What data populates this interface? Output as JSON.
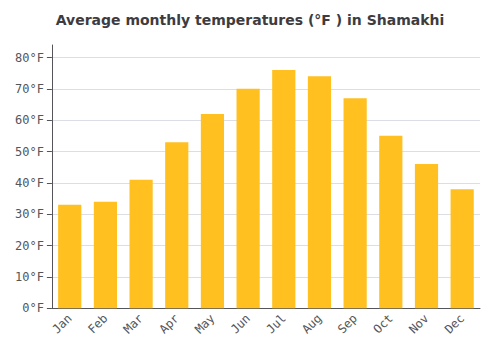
{
  "chart_data": {
    "type": "bar",
    "title": "Average monthly temperatures (°F ) in Shamakhi",
    "categories": [
      "Jan",
      "Feb",
      "Mar",
      "Apr",
      "May",
      "Jun",
      "Jul",
      "Aug",
      "Sep",
      "Oct",
      "Nov",
      "Dec"
    ],
    "values": [
      33,
      34,
      41,
      53,
      62,
      70,
      76,
      74,
      67,
      55,
      46,
      38
    ],
    "color": "#FFC020",
    "ylim": [
      0,
      84
    ],
    "yticks": [
      {
        "value": 0,
        "label": "0°F"
      },
      {
        "value": 10,
        "label": "10°F"
      },
      {
        "value": 20,
        "label": "20°F"
      },
      {
        "value": 30,
        "label": "30°F"
      },
      {
        "value": 40,
        "label": "40°F"
      },
      {
        "value": 50,
        "label": "50°F"
      },
      {
        "value": 60,
        "label": "60°F"
      },
      {
        "value": 70,
        "label": "70°F"
      },
      {
        "value": 80,
        "label": "80°F"
      }
    ],
    "grid": true
  }
}
